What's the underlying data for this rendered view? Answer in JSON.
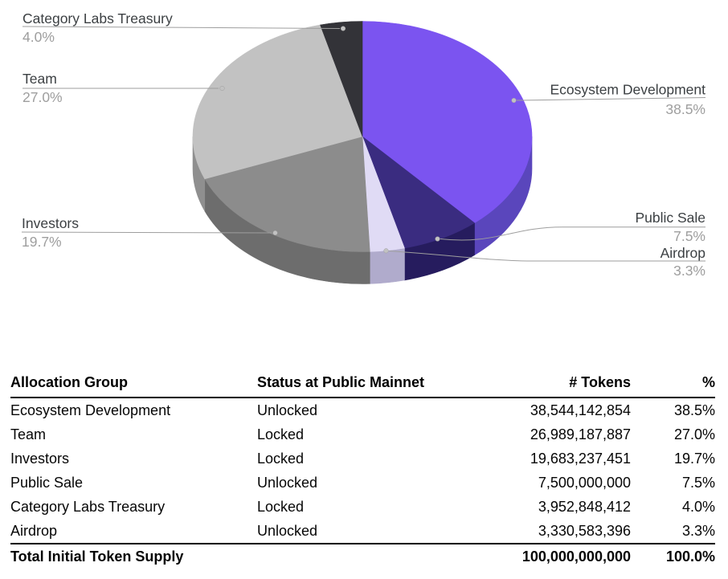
{
  "chart_data": {
    "type": "pie",
    "style": "3d",
    "title": "",
    "legend_position": "outside-labels-with-leader-lines",
    "start_angle_deg": 0,
    "direction": "clockwise",
    "slices": [
      {
        "label": "Ecosystem Development",
        "value": 38.5,
        "pct_label": "38.5%",
        "color": "#7B54F0",
        "side_color": "#5A46BC"
      },
      {
        "label": "Public Sale",
        "value": 7.5,
        "pct_label": "7.5%",
        "color": "#3A2C80",
        "side_color": "#261C5E"
      },
      {
        "label": "Airdrop",
        "value": 3.3,
        "pct_label": "3.3%",
        "color": "#E0DBF5",
        "side_color": "#B0ABCC"
      },
      {
        "label": "Investors",
        "value": 19.7,
        "pct_label": "19.7%",
        "color": "#8C8C8C",
        "side_color": "#6D6D6D"
      },
      {
        "label": "Team",
        "value": 27.0,
        "pct_label": "27.0%",
        "color": "#C2C2C2",
        "side_color": "#8F8F8F"
      },
      {
        "label": "Category Labs Treasury",
        "value": 4.0,
        "pct_label": "4.0%",
        "color": "#333338",
        "side_color": "#26262B"
      }
    ]
  },
  "table": {
    "headers": [
      "Allocation Group",
      "Status at Public Mainnet",
      "# Tokens",
      "%"
    ],
    "rows": [
      [
        "Ecosystem Development",
        "Unlocked",
        "38,544,142,854",
        "38.5%"
      ],
      [
        "Team",
        "Locked",
        "26,989,187,887",
        "27.0%"
      ],
      [
        "Investors",
        "Locked",
        "19,683,237,451",
        "19.7%"
      ],
      [
        "Public Sale",
        "Unlocked",
        "7,500,000,000",
        "7.5%"
      ],
      [
        "Category Labs Treasury",
        "Locked",
        "3,952,848,412",
        "4.0%"
      ],
      [
        "Airdrop",
        "Unlocked",
        "3,330,583,396",
        "3.3%"
      ]
    ],
    "total": [
      "Total Initial Token Supply",
      "",
      "100,000,000,000",
      "100.0%"
    ]
  }
}
